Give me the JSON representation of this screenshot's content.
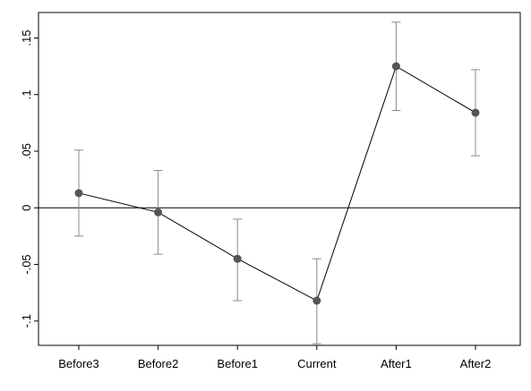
{
  "chart_data": {
    "type": "line",
    "title": "",
    "xlabel": "",
    "ylabel": "",
    "categories": [
      "Before3",
      "Before2",
      "Before1",
      "Current",
      "After1",
      "After2"
    ],
    "series": [
      {
        "values": [
          0.013,
          -0.004,
          -0.045,
          -0.082,
          0.125,
          0.084
        ],
        "ci_lower": [
          -0.025,
          -0.041,
          -0.082,
          -0.12,
          0.086,
          0.046
        ],
        "ci_upper": [
          0.051,
          0.033,
          -0.01,
          -0.045,
          0.164,
          0.122
        ]
      }
    ],
    "y_ticks": [
      -0.1,
      -0.05,
      0,
      0.05,
      0.1,
      0.15
    ],
    "y_tick_labels": [
      "-.1",
      "-.05",
      "0",
      ".05",
      ".1",
      ".15"
    ],
    "ylim": [
      -0.1215,
      0.1725
    ],
    "reference_line_y": 0,
    "grid": false,
    "legend": "none",
    "colors": {
      "marker": "#555555",
      "line": "#000000",
      "error_bar": "#8a8a8a"
    }
  }
}
